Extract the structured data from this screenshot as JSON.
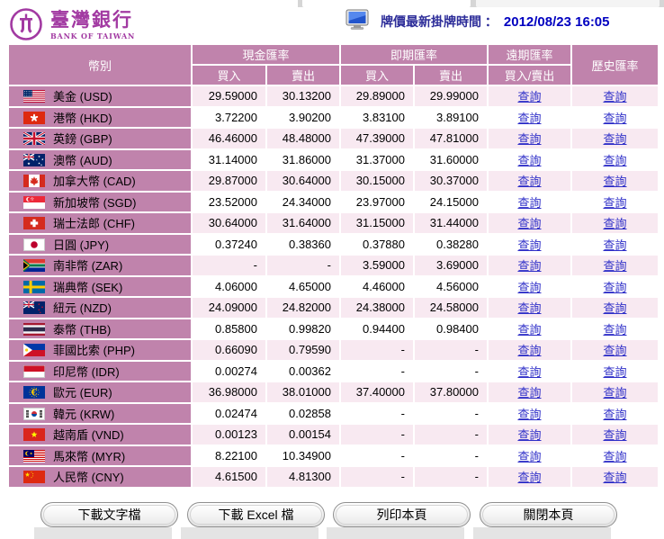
{
  "logo": {
    "title": "臺灣銀行",
    "subtitle": "BANK OF TAIWAN"
  },
  "info": {
    "label": "牌價最新掛牌時間 ：",
    "datetime": "2012/08/23 16:05",
    "icon": "monitor-icon"
  },
  "table": {
    "headers": {
      "currency": "幣別",
      "cash": "現金匯率",
      "spot": "即期匯率",
      "forward": "遠期匯率",
      "history": "歷史匯率",
      "buy": "買入",
      "sell": "賣出",
      "buy_sell": "買入/賣出",
      "query": "查詢"
    },
    "rows": [
      {
        "name": "美金 (USD)",
        "flag": "us-flag-icon",
        "cash_buy": "29.59000",
        "cash_sell": "30.13200",
        "spot_buy": "29.89000",
        "spot_sell": "29.99000"
      },
      {
        "name": "港幣 (HKD)",
        "flag": "hk-flag-icon",
        "cash_buy": "3.72200",
        "cash_sell": "3.90200",
        "spot_buy": "3.83100",
        "spot_sell": "3.89100"
      },
      {
        "name": "英鎊 (GBP)",
        "flag": "gb-flag-icon",
        "cash_buy": "46.46000",
        "cash_sell": "48.48000",
        "spot_buy": "47.39000",
        "spot_sell": "47.81000"
      },
      {
        "name": "澳幣 (AUD)",
        "flag": "au-flag-icon",
        "cash_buy": "31.14000",
        "cash_sell": "31.86000",
        "spot_buy": "31.37000",
        "spot_sell": "31.60000"
      },
      {
        "name": "加拿大幣 (CAD)",
        "flag": "ca-flag-icon",
        "cash_buy": "29.87000",
        "cash_sell": "30.64000",
        "spot_buy": "30.15000",
        "spot_sell": "30.37000"
      },
      {
        "name": "新加坡幣 (SGD)",
        "flag": "sg-flag-icon",
        "cash_buy": "23.52000",
        "cash_sell": "24.34000",
        "spot_buy": "23.97000",
        "spot_sell": "24.15000"
      },
      {
        "name": "瑞士法郎 (CHF)",
        "flag": "ch-flag-icon",
        "cash_buy": "30.64000",
        "cash_sell": "31.64000",
        "spot_buy": "31.15000",
        "spot_sell": "31.44000"
      },
      {
        "name": "日圓 (JPY)",
        "flag": "jp-flag-icon",
        "cash_buy": "0.37240",
        "cash_sell": "0.38360",
        "spot_buy": "0.37880",
        "spot_sell": "0.38280"
      },
      {
        "name": "南非幣 (ZAR)",
        "flag": "za-flag-icon",
        "cash_buy": "-",
        "cash_sell": "-",
        "spot_buy": "3.59000",
        "spot_sell": "3.69000"
      },
      {
        "name": "瑞典幣 (SEK)",
        "flag": "se-flag-icon",
        "cash_buy": "4.06000",
        "cash_sell": "4.65000",
        "spot_buy": "4.46000",
        "spot_sell": "4.56000"
      },
      {
        "name": "紐元 (NZD)",
        "flag": "nz-flag-icon",
        "cash_buy": "24.09000",
        "cash_sell": "24.82000",
        "spot_buy": "24.38000",
        "spot_sell": "24.58000"
      },
      {
        "name": "泰幣 (THB)",
        "flag": "th-flag-icon",
        "cash_buy": "0.85800",
        "cash_sell": "0.99820",
        "spot_buy": "0.94400",
        "spot_sell": "0.98400"
      },
      {
        "name": "菲國比索 (PHP)",
        "flag": "ph-flag-icon",
        "cash_buy": "0.66090",
        "cash_sell": "0.79590",
        "spot_buy": "-",
        "spot_sell": "-"
      },
      {
        "name": "印尼幣 (IDR)",
        "flag": "id-flag-icon",
        "cash_buy": "0.00274",
        "cash_sell": "0.00362",
        "spot_buy": "-",
        "spot_sell": "-"
      },
      {
        "name": "歐元 (EUR)",
        "flag": "eu-flag-icon",
        "cash_buy": "36.98000",
        "cash_sell": "38.01000",
        "spot_buy": "37.40000",
        "spot_sell": "37.80000"
      },
      {
        "name": "韓元 (KRW)",
        "flag": "kr-flag-icon",
        "cash_buy": "0.02474",
        "cash_sell": "0.02858",
        "spot_buy": "-",
        "spot_sell": "-"
      },
      {
        "name": "越南盾 (VND)",
        "flag": "vn-flag-icon",
        "cash_buy": "0.00123",
        "cash_sell": "0.00154",
        "spot_buy": "-",
        "spot_sell": "-"
      },
      {
        "name": "馬來幣 (MYR)",
        "flag": "my-flag-icon",
        "cash_buy": "8.22100",
        "cash_sell": "10.34900",
        "spot_buy": "-",
        "spot_sell": "-"
      },
      {
        "name": "人民幣 (CNY)",
        "flag": "cn-flag-icon",
        "cash_buy": "4.61500",
        "cash_sell": "4.81300",
        "spot_buy": "-",
        "spot_sell": "-"
      }
    ]
  },
  "buttons": {
    "download_text": "下載文字檔",
    "download_excel": "下載 Excel 檔",
    "print": "列印本頁",
    "close": "關閉本頁"
  },
  "colors": {
    "header_bg": "#c083ac",
    "row_alt": "#f8e9f1",
    "link": "#2f2fc8",
    "logo": "#a23aa2",
    "info_label": "#2d2d99",
    "info_time": "#0000c0"
  }
}
